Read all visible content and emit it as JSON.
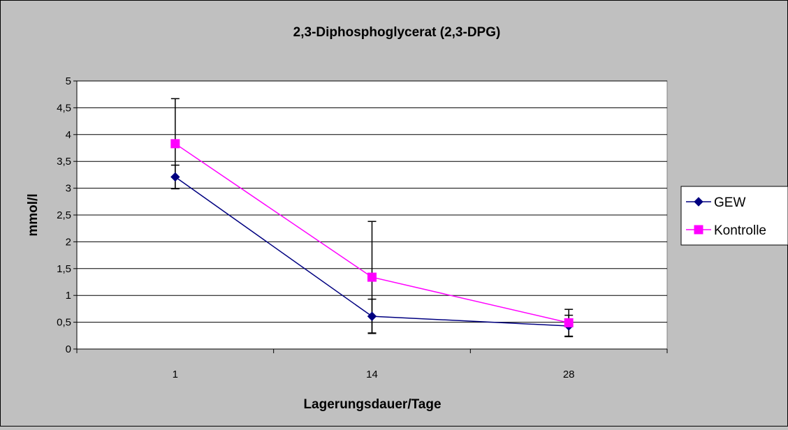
{
  "chart_data": {
    "type": "line",
    "title": "2,3-Diphosphoglycerat (2,3-DPG)",
    "xlabel": "Lagerungsdauer/Tage",
    "ylabel": "mmol/l",
    "categories": [
      "1",
      "14",
      "28"
    ],
    "ylim": [
      0,
      5
    ],
    "yticks": [
      "0",
      "0,5",
      "1",
      "1,5",
      "2",
      "2,5",
      "3",
      "3,5",
      "4",
      "4,5",
      "5"
    ],
    "grid": true,
    "legend": "right",
    "series": [
      {
        "name": "GEW",
        "color": "#000080",
        "marker": "diamond",
        "values": [
          3.21,
          0.61,
          0.43
        ],
        "error": [
          0.22,
          0.32,
          0.2
        ]
      },
      {
        "name": "Kontrolle",
        "color": "#ff00ff",
        "marker": "square",
        "values": [
          3.83,
          1.34,
          0.49
        ],
        "error": [
          0.84,
          1.04,
          0.25
        ]
      }
    ]
  }
}
